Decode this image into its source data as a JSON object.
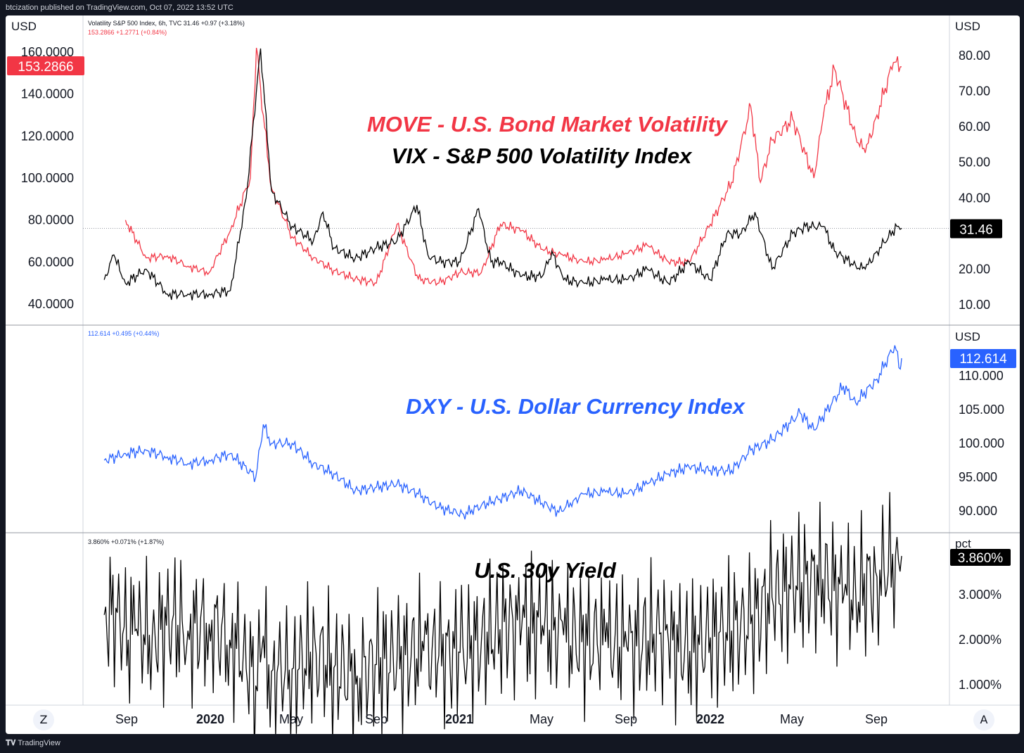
{
  "header": {
    "text": "btcization published on TradingView.com, Oct 07, 2022 13:52 UTC"
  },
  "footer": {
    "logo_text": "TradingView"
  },
  "buttons": {
    "z_label": "Z",
    "a_label": "A"
  },
  "colors": {
    "move": "#f23645",
    "vix": "#000000",
    "dxy": "#2962ff",
    "yield": "#000000",
    "price_tag_black": "#000000"
  },
  "time_axis": {
    "labels": [
      "Sep",
      "2020",
      "May",
      "Sep",
      "2021",
      "May",
      "Sep",
      "2022",
      "May",
      "Sep"
    ],
    "bold": [
      false,
      true,
      false,
      false,
      true,
      false,
      false,
      true,
      false,
      false
    ]
  },
  "chart_data": [
    {
      "type": "line",
      "title": "MOVE - U.S. Bond Market Volatility",
      "subtitle": "VIX - S&P 500 Volatility Index",
      "legend_line_1": "Volatility S&P 500 Index, 6h, TVC  31.46  +0.97 (+3.18%)",
      "legend_line_2": "153.2866  +1.2771 (+0.84%)",
      "left_axis": {
        "unit": "USD",
        "ticks": [
          "160.0000",
          "140.0000",
          "120.0000",
          "100.0000",
          "80.0000",
          "60.0000",
          "40.0000"
        ],
        "range": [
          30,
          160
        ]
      },
      "right_axis": {
        "unit": "USD",
        "ticks": [
          "80.00",
          "70.00",
          "60.00",
          "50.00",
          "40.00",
          "20.00",
          "10.00"
        ],
        "range": [
          10,
          80
        ]
      },
      "last_values": {
        "move": "153.2866",
        "vix": "31.46"
      },
      "series": [
        {
          "name": "MOVE",
          "axis": "left",
          "x": [
            "2019-09-01",
            "2019-10-01",
            "2019-11-01",
            "2019-12-01",
            "2020-01-01",
            "2020-02-01",
            "2020-03-01",
            "2020-03-10",
            "2020-03-20",
            "2020-04-01",
            "2020-05-01",
            "2020-06-01",
            "2020-07-01",
            "2020-08-01",
            "2020-09-01",
            "2020-10-01",
            "2020-11-01",
            "2020-12-01",
            "2021-01-01",
            "2021-02-01",
            "2021-03-01",
            "2021-04-01",
            "2021-05-01",
            "2021-06-01",
            "2021-07-01",
            "2021-08-01",
            "2021-09-01",
            "2021-10-01",
            "2021-11-01",
            "2021-12-01",
            "2022-01-01",
            "2022-02-01",
            "2022-03-01",
            "2022-03-15",
            "2022-04-01",
            "2022-05-01",
            "2022-06-01",
            "2022-06-15",
            "2022-07-01",
            "2022-08-01",
            "2022-08-15",
            "2022-09-01",
            "2022-09-25",
            "2022-10-07"
          ],
          "values": [
            80,
            62,
            63,
            58,
            55,
            75,
            100,
            162,
            130,
            95,
            72,
            62,
            56,
            52,
            50,
            78,
            52,
            50,
            55,
            55,
            78,
            75,
            66,
            63,
            60,
            61,
            64,
            68,
            60,
            60,
            78,
            98,
            134,
            98,
            118,
            128,
            100,
            130,
            152,
            120,
            112,
            130,
            155,
            153
          ]
        },
        {
          "name": "VIX",
          "axis": "right",
          "x": [
            "2019-08-01",
            "2019-08-15",
            "2019-09-01",
            "2019-10-01",
            "2019-11-01",
            "2019-12-01",
            "2020-01-01",
            "2020-02-01",
            "2020-02-24",
            "2020-03-16",
            "2020-04-01",
            "2020-05-01",
            "2020-06-01",
            "2020-06-15",
            "2020-07-01",
            "2020-08-01",
            "2020-09-01",
            "2020-10-01",
            "2020-10-30",
            "2020-11-15",
            "2020-12-01",
            "2021-01-01",
            "2021-01-28",
            "2021-02-15",
            "2021-03-01",
            "2021-04-01",
            "2021-05-01",
            "2021-05-15",
            "2021-06-01",
            "2021-07-01",
            "2021-08-01",
            "2021-09-01",
            "2021-10-01",
            "2021-11-01",
            "2021-12-01",
            "2022-01-01",
            "2022-01-25",
            "2022-02-15",
            "2022-03-07",
            "2022-04-01",
            "2022-05-01",
            "2022-05-20",
            "2022-06-15",
            "2022-07-01",
            "2022-08-01",
            "2022-08-15",
            "2022-09-01",
            "2022-09-30",
            "2022-10-07"
          ],
          "values": [
            17,
            24,
            16,
            20,
            13,
            13,
            13,
            14,
            40,
            82,
            42,
            32,
            28,
            36,
            26,
            23,
            26,
            28,
            38,
            24,
            22,
            22,
            37,
            22,
            22,
            18,
            18,
            25,
            17,
            16,
            17,
            17,
            20,
            16,
            22,
            17,
            30,
            30,
            36,
            20,
            30,
            32,
            32,
            25,
            21,
            20,
            25,
            32,
            31.46
          ]
        }
      ]
    },
    {
      "type": "line",
      "title": "DXY - U.S. Dollar Currency Index",
      "legend_line": "112.614  +0.495 (+0.44%)",
      "right_axis": {
        "unit": "USD",
        "ticks": [
          "110.000",
          "105.000",
          "100.000",
          "95.000",
          "90.000"
        ],
        "range": [
          88,
          115
        ]
      },
      "last_value": "112.614",
      "series": [
        {
          "name": "DXY",
          "x": [
            "2019-08-01",
            "2019-09-01",
            "2019-10-01",
            "2019-11-01",
            "2019-12-01",
            "2020-01-01",
            "2020-02-01",
            "2020-03-09",
            "2020-03-20",
            "2020-04-01",
            "2020-05-01",
            "2020-06-01",
            "2020-07-01",
            "2020-08-01",
            "2020-09-01",
            "2020-10-01",
            "2020-11-01",
            "2020-12-01",
            "2021-01-06",
            "2021-02-01",
            "2021-03-31",
            "2021-05-25",
            "2021-06-15",
            "2021-07-01",
            "2021-08-01",
            "2021-09-01",
            "2021-10-01",
            "2021-11-01",
            "2021-12-01",
            "2022-01-01",
            "2022-02-01",
            "2022-03-01",
            "2022-04-01",
            "2022-05-12",
            "2022-06-01",
            "2022-07-14",
            "2022-08-01",
            "2022-09-01",
            "2022-09-27",
            "2022-10-05",
            "2022-10-07"
          ],
          "values": [
            97.5,
            98.5,
            99,
            98,
            97,
            97.5,
            98.5,
            95,
            102.8,
            100,
            100,
            97,
            95.5,
            93,
            93.5,
            94,
            92.5,
            90.5,
            89.5,
            90.8,
            93,
            89.8,
            91.5,
            92.5,
            92.8,
            92.5,
            94,
            95.5,
            96.5,
            96,
            96,
            99,
            100.5,
            104.5,
            102,
            108.5,
            106,
            109.5,
            114.5,
            111,
            112.6
          ]
        }
      ]
    },
    {
      "type": "line",
      "title": "U.S. 30y Yield",
      "legend_line": "3.860%  +0.071% (+1.87%)",
      "right_axis": {
        "unit": "pct",
        "ticks": [
          "3.000%",
          "2.000%",
          "1.000%"
        ],
        "range": [
          0.8,
          4.0
        ]
      },
      "last_value": "3.860%",
      "series": [
        {
          "name": "US30Y",
          "x": [
            "2019-08-01",
            "2019-08-20",
            "2019-09-05",
            "2019-09-15",
            "2019-10-10",
            "2019-11-08",
            "2019-12-01",
            "2020-01-01",
            "2020-01-31",
            "2020-02-20",
            "2020-03-09",
            "2020-03-18",
            "2020-04-01",
            "2020-05-01",
            "2020-06-05",
            "2020-07-01",
            "2020-08-04",
            "2020-09-01",
            "2020-10-01",
            "2020-11-09",
            "2020-12-01",
            "2021-01-01",
            "2021-02-01",
            "2021-03-19",
            "2021-04-01",
            "2021-05-01",
            "2021-06-01",
            "2021-07-20",
            "2021-08-01",
            "2021-09-01",
            "2021-10-21",
            "2021-11-01",
            "2021-12-02",
            "2022-01-01",
            "2022-02-01",
            "2022-03-01",
            "2022-04-01",
            "2022-05-06",
            "2022-06-14",
            "2022-07-15",
            "2022-08-01",
            "2022-09-01",
            "2022-09-28",
            "2022-10-07"
          ],
          "values": [
            2.55,
            2.6,
            2.0,
            2.2,
            2.1,
            2.4,
            2.2,
            2.35,
            2.0,
            1.75,
            0.98,
            1.8,
            1.3,
            1.35,
            1.7,
            1.38,
            1.2,
            1.45,
            1.55,
            1.75,
            1.65,
            1.72,
            1.95,
            2.45,
            2.3,
            2.32,
            2.1,
            1.9,
            1.95,
            1.85,
            2.15,
            1.95,
            1.75,
            2.05,
            2.2,
            2.35,
            2.95,
            3.2,
            3.35,
            3.0,
            3.05,
            3.4,
            3.85,
            3.86
          ]
        }
      ]
    }
  ]
}
